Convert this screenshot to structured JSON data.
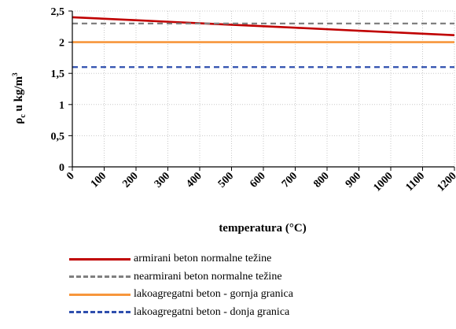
{
  "chart_data": {
    "type": "line",
    "x": [
      0,
      100,
      200,
      300,
      400,
      500,
      600,
      700,
      800,
      900,
      1000,
      1100,
      1200
    ],
    "x_ticks": [
      "0",
      "100",
      "200",
      "300",
      "400",
      "500",
      "600",
      "700",
      "800",
      "900",
      "1000",
      "1100",
      "1200"
    ],
    "y_ticks": [
      "0",
      "0,5",
      "1",
      "1,5",
      "2",
      "2,5"
    ],
    "xlim": [
      0,
      1200
    ],
    "ylim": [
      0,
      2.5
    ],
    "xlabel": "temperatura (°C)",
    "ylabel_main": "ρ",
    "ylabel_sub": "c",
    "ylabel_rest": " u kg/m",
    "ylabel_sup": "3",
    "grid": true,
    "legend_position": "bottom",
    "series": [
      {
        "name": "armirani beton normalne težine",
        "color": "#c00000",
        "dash": "solid",
        "points": [
          [
            0,
            2.4
          ],
          [
            100,
            2.376
          ],
          [
            200,
            2.352
          ],
          [
            300,
            2.328
          ],
          [
            400,
            2.304
          ],
          [
            500,
            2.28
          ],
          [
            600,
            2.256
          ],
          [
            700,
            2.232
          ],
          [
            800,
            2.208
          ],
          [
            900,
            2.184
          ],
          [
            1000,
            2.16
          ],
          [
            1100,
            2.136
          ],
          [
            1200,
            2.112
          ]
        ]
      },
      {
        "name": "nearmirani beton normalne težine",
        "color": "#808080",
        "dash": "dashed",
        "points": [
          [
            0,
            2.3
          ],
          [
            1200,
            2.3
          ]
        ]
      },
      {
        "name": "lakoagregatni beton - gornja granica",
        "color": "#f7963c",
        "dash": "solid",
        "points": [
          [
            0,
            2.0
          ],
          [
            1200,
            2.0
          ]
        ]
      },
      {
        "name": "lakoagregatni beton - donja granica",
        "color": "#2f4fae",
        "dash": "dashed",
        "points": [
          [
            0,
            1.6
          ],
          [
            1200,
            1.6
          ]
        ]
      }
    ]
  }
}
